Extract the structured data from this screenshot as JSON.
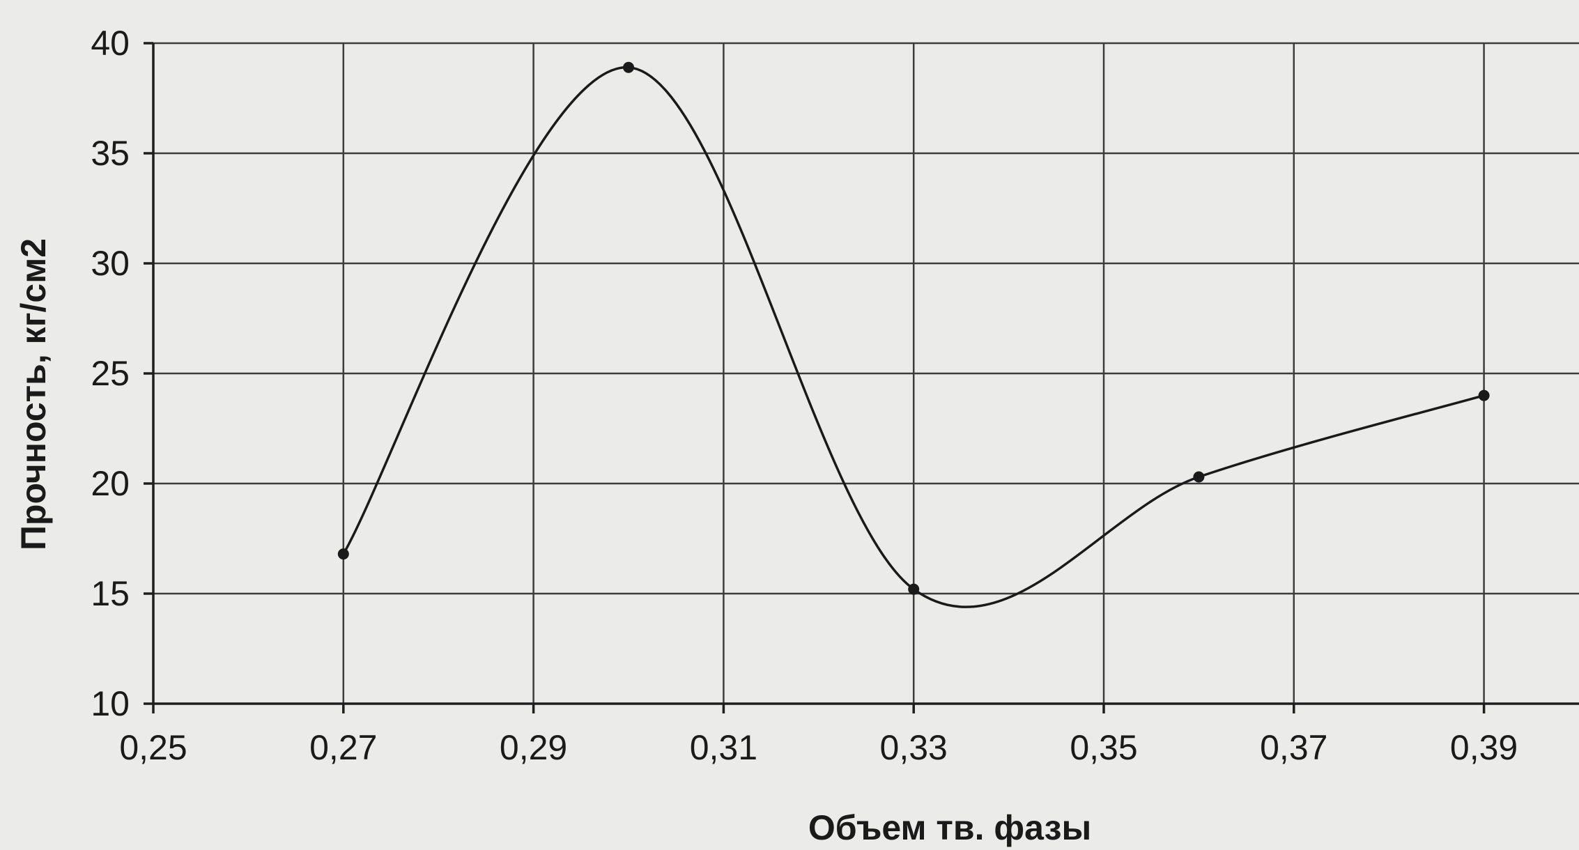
{
  "chart_data": {
    "type": "line",
    "title": "",
    "xlabel": "Объем тв. фазы",
    "ylabel": "Прочность, кг/см2",
    "xlim": [
      0.25,
      0.4
    ],
    "ylim": [
      10,
      40
    ],
    "x_ticks": [
      0.25,
      0.27,
      0.29,
      0.31,
      0.33,
      0.35,
      0.37,
      0.39
    ],
    "x_tick_labels": [
      "0,25",
      "0,27",
      "0,29",
      "0,31",
      "0,33",
      "0,35",
      "0,37",
      "0,39"
    ],
    "y_ticks": [
      10,
      15,
      20,
      25,
      30,
      35,
      40
    ],
    "y_tick_labels": [
      "10",
      "15",
      "20",
      "25",
      "30",
      "35",
      "40"
    ],
    "grid": true,
    "smooth": true,
    "series": [
      {
        "x": [
          0.27,
          0.3,
          0.33,
          0.36,
          0.39
        ],
        "values": [
          16.8,
          38.9,
          15.2,
          20.3,
          24.0
        ]
      }
    ],
    "colors": {
      "line": "#1a1a1a",
      "grid": "#3c3c3c",
      "background": "#ebebea"
    }
  }
}
